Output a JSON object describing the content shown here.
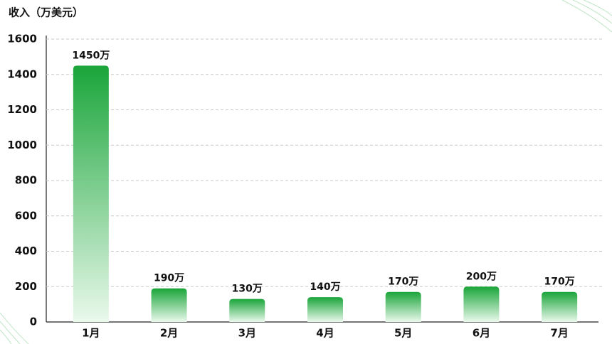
{
  "chart_data": {
    "type": "bar",
    "y_axis_title": "收入（万美元）",
    "categories": [
      "1月",
      "2月",
      "3月",
      "4月",
      "5月",
      "6月",
      "7月"
    ],
    "values": [
      1450,
      190,
      130,
      140,
      170,
      200,
      170
    ],
    "value_labels": [
      "1450万",
      "190万",
      "130万",
      "140万",
      "170万",
      "200万",
      "170万"
    ],
    "color": "#1aa53a",
    "ylim": [
      0,
      1600
    ],
    "yticks": [
      0,
      200,
      400,
      600,
      800,
      1000,
      1200,
      1400,
      1600
    ],
    "grid": true
  }
}
